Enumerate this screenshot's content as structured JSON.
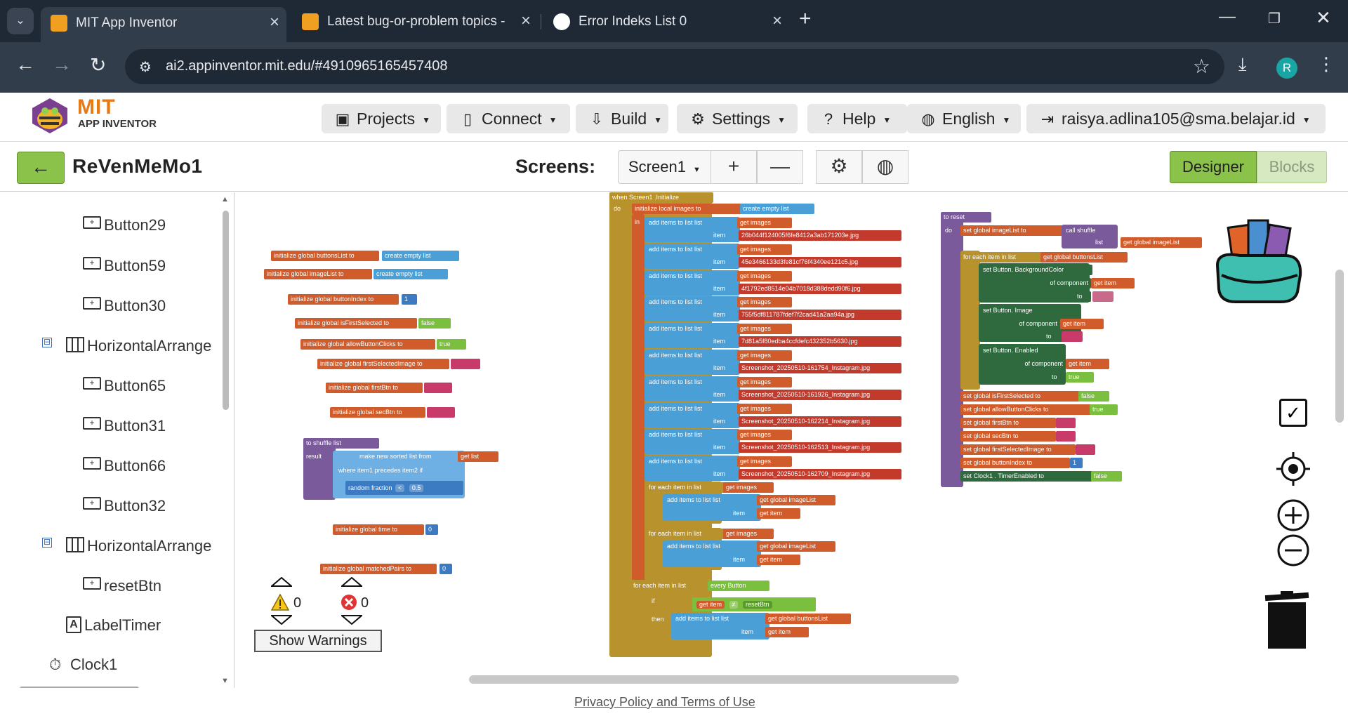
{
  "browser": {
    "tabs": [
      {
        "title": "MIT App Inventor",
        "active": true
      },
      {
        "title": "Latest bug-or-problem topics -",
        "active": false
      },
      {
        "title": "Error Indeks List 0",
        "active": false
      }
    ],
    "url": "ai2.appinventor.mit.edu/#4910965165457408",
    "profile_initial": "R"
  },
  "app_header": {
    "logo_text": "MIT",
    "logo_subtext": "APP INVENTOR",
    "menu": [
      {
        "label": "Projects",
        "icon": "folder-icon"
      },
      {
        "label": "Connect",
        "icon": "phone-icon"
      },
      {
        "label": "Build",
        "icon": "build-icon"
      },
      {
        "label": "Settings",
        "icon": "gear-icon"
      },
      {
        "label": "Help",
        "icon": "help-icon"
      },
      {
        "label": "English",
        "icon": "globe-icon"
      },
      {
        "label": "raisya.adlina105@sma.belajar.id",
        "icon": "logout-icon"
      }
    ]
  },
  "project_bar": {
    "project_name": "ReVenMeMo1",
    "screens_label": "Screens:",
    "screen_selected": "Screen1",
    "add_screen": "+",
    "remove_screen": "—",
    "designer_label": "Designer",
    "blocks_label": "Blocks"
  },
  "tree": {
    "items": [
      {
        "label": "Button29",
        "type": "button"
      },
      {
        "label": "Button59",
        "type": "button"
      },
      {
        "label": "Button30",
        "type": "button"
      },
      {
        "label": "HorizontalArrange",
        "type": "hz",
        "toggle": "⊟"
      },
      {
        "label": "Button65",
        "type": "button"
      },
      {
        "label": "Button31",
        "type": "button"
      },
      {
        "label": "Button66",
        "type": "button"
      },
      {
        "label": "Button32",
        "type": "button"
      },
      {
        "label": "HorizontalArrange",
        "type": "hz",
        "toggle": "⊟"
      },
      {
        "label": "resetBtn",
        "type": "button"
      },
      {
        "label": "LabelTimer",
        "type": "label"
      },
      {
        "label": "Clock1",
        "type": "clock"
      }
    ]
  },
  "warnings": {
    "warning_count": "0",
    "error_count": "0",
    "show_warnings_label": "Show Warnings"
  },
  "blocks": {
    "globals": [
      "initialize global  buttonsList  to",
      "create empty list",
      "initialize global  imageList  to",
      "create empty list",
      "initialize global  buttonIndex  to",
      "1",
      "initialize global  isFirstSelected  to",
      "false",
      "initialize global  allowButtonClicks  to",
      "true",
      "initialize global  firstSelectedImage  to",
      "initialize global  firstBtn  to",
      "initialize global  secBtn  to",
      "initialize global  time  to",
      "0",
      "initialize global  matchedPairs  to",
      "0"
    ],
    "shuffle": [
      "to  shuffle  list",
      "result",
      "make new sorted list from",
      "get  list",
      "where  item1  precedes  item2  if",
      "random fraction",
      "<",
      "0.5"
    ],
    "init_event": {
      "header": "when  Screen1  .Initialize",
      "do": "do",
      "local": "initialize local  images  to",
      "create_list": "create empty list",
      "in": "in",
      "add_label": "add items to list   list",
      "item_label": "item",
      "get_images": "get  images",
      "images": [
        "26b044f124005f6fe8412a3ab171203e.jpg",
        "45e3466133d3fe81cf76f4340ee121c5.jpg",
        "4f1792ed8514e04b7018d388dedd90f6.jpg",
        "755f5df811787fdef7f2cad41a2aa94a.jpg",
        "7d81a5f80edba4ccfdefc432352b5630.jpg",
        "Screenshot_20250510-161754_Instagram.jpg",
        "Screenshot_20250510-161926_Instagram.jpg",
        "Screenshot_20250510-162214_Instagram.jpg",
        "Screenshot_20250510-162513_Instagram.jpg",
        "Screenshot_20250510-162709_Instagram.jpg"
      ],
      "foreach1": "for each  item  in list",
      "get_images2": "get  images",
      "add2": "add items to list   list",
      "get_global_imagelist": "get  global imageList",
      "item2": "item",
      "get_item": "get  item",
      "foreach2": "for each  item  in list",
      "get_images3": "get  images",
      "add3": "add items to list   list",
      "get_global_imagelist2": "get  global imageList",
      "item3": "item",
      "get_item2": "get  item",
      "foreach3": "for each  item  in list",
      "every_button": "every  Button",
      "if": "if",
      "get_item3": "get  item",
      "neq": "≠",
      "resetbtn": "resetBtn",
      "then": "then",
      "add4": "add items to list   list",
      "get_buttons": "get  global buttonsList",
      "item4": "item",
      "get_item4": "get  item"
    },
    "reset": {
      "header": "to  reset",
      "do": "do",
      "set_imagelist": "set  global imageList  to",
      "call_shuffle": "call  shuffle",
      "list": "list",
      "get_imagelist": "get  global imageList",
      "foreach": "for each  item  in list",
      "get_buttonslist": "get  global buttonsList",
      "set_bg": "set Button.  BackgroundColor",
      "of_component": "of component",
      "get_item": "get  item",
      "to": "to",
      "set_image": "set Button.  Image",
      "of_component2": "of component",
      "get_item2": "get  item",
      "to2": "to",
      "set_enabled": "set Button.  Enabled",
      "of_component3": "of component",
      "get_item3": "get  item",
      "to3": "to",
      "true": "true",
      "set_isfirst": "set  global isFirstSelected  to",
      "false": "false",
      "set_allow": "set  global allowButtonClicks  to",
      "true2": "true",
      "set_firstbtn": "set  global firstBtn  to",
      "set_secbtn": "set  global secBtn  to",
      "set_firstsel": "set  global firstSelectedImage  to",
      "set_btnindex": "set  global buttonIndex  to",
      "one": "1",
      "set_clock": "set  Clock1 .  TimerEnabled  to",
      "false2": "false"
    }
  },
  "footer": {
    "link": "Privacy Policy and Terms of Use"
  },
  "colors": {
    "tabbar": "#1f2835",
    "addrbar": "#323d4c",
    "accent_green": "#8bc34a",
    "mit_orange": "#e87a15"
  }
}
